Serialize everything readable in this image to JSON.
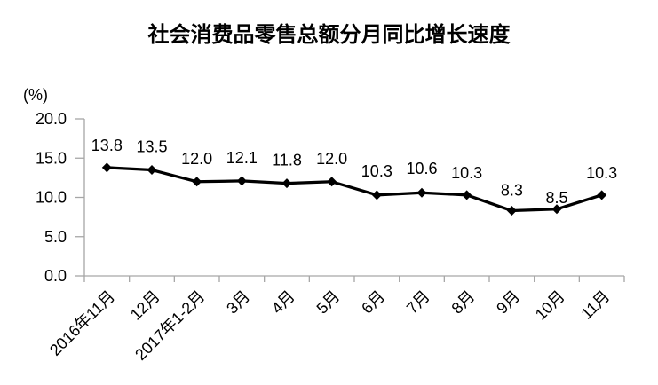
{
  "page": {
    "background_color": "#ffffff"
  },
  "chart_data": {
    "type": "line",
    "title": "社会消费品零售总额分月同比增长速度",
    "xlabel": "",
    "ylabel": "(%)",
    "categories": [
      "2016年11月",
      "12月",
      "2017年1-2月",
      "3月",
      "4月",
      "5月",
      "6月",
      "7月",
      "8月",
      "9月",
      "10月",
      "11月"
    ],
    "values": [
      13.8,
      13.5,
      12.0,
      12.1,
      11.8,
      12.0,
      10.3,
      10.6,
      10.3,
      8.3,
      8.5,
      10.3
    ],
    "data_labels": [
      "13.8",
      "13.5",
      "12.0",
      "12.1",
      "11.8",
      "12.0",
      "10.3",
      "10.6",
      "10.3",
      "8.3",
      "8.5",
      "10.3"
    ],
    "ylim": [
      0,
      20
    ],
    "yticks": [
      0,
      5,
      10,
      15,
      20
    ],
    "ytick_labels": [
      "0.0",
      "5.0",
      "10.0",
      "15.0",
      "20.0"
    ],
    "grid": false,
    "legend": "none",
    "styles": {
      "line_color": "#000000",
      "marker": "diamond",
      "marker_color": "#000000",
      "axis_color": "#a6a6a6",
      "text_color": "#000000"
    },
    "layout": {
      "x_label_rotation": -45,
      "data_label_position": "above",
      "data_label_dy": [
        19,
        20,
        20,
        20,
        20,
        20,
        21,
        21,
        19,
        17,
        7,
        19
      ]
    }
  }
}
